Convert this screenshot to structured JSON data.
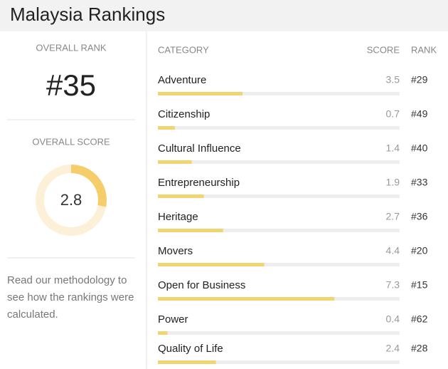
{
  "header": {
    "title": "Malaysia Rankings"
  },
  "overall": {
    "rank_label": "OVERALL RANK",
    "rank": "#35",
    "score_label": "OVERALL SCORE",
    "score": 2.8,
    "score_range": [
      0,
      10
    ],
    "methodology": "Read our methodology to see how the rankings were calculated."
  },
  "table": {
    "columns": [
      "CATEGORY",
      "SCORE",
      "RANK"
    ],
    "xlim": [
      0,
      10
    ],
    "rows": [
      {
        "category": "Adventure",
        "score": 3.5,
        "rank": "#29"
      },
      {
        "category": "Citizenship",
        "score": 0.7,
        "rank": "#49"
      },
      {
        "category": "Cultural Influence",
        "score": 1.4,
        "rank": "#40"
      },
      {
        "category": "Entrepreneurship",
        "score": 1.9,
        "rank": "#33"
      },
      {
        "category": "Heritage",
        "score": 2.7,
        "rank": "#36"
      },
      {
        "category": "Movers",
        "score": 4.4,
        "rank": "#20"
      },
      {
        "category": "Open for Business",
        "score": 7.3,
        "rank": "#15"
      },
      {
        "category": "Power",
        "score": 0.4,
        "rank": "#62"
      },
      {
        "category": "Quality of Life",
        "score": 2.4,
        "rank": "#28"
      }
    ]
  }
}
